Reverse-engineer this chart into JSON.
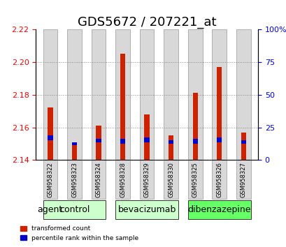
{
  "title": "GDS5672 / 207221_at",
  "samples": [
    "GSM958322",
    "GSM958323",
    "GSM958324",
    "GSM958328",
    "GSM958329",
    "GSM958330",
    "GSM958325",
    "GSM958326",
    "GSM958327"
  ],
  "red_values": [
    2.172,
    2.151,
    2.161,
    2.205,
    2.168,
    2.155,
    2.181,
    2.197,
    2.157
  ],
  "blue_values": [
    2.152,
    2.149,
    2.151,
    2.15,
    2.151,
    2.15,
    2.15,
    2.151,
    2.15
  ],
  "blue_heights": [
    0.003,
    0.002,
    0.002,
    0.003,
    0.003,
    0.002,
    0.003,
    0.003,
    0.002
  ],
  "ylim_left": [
    2.14,
    2.22
  ],
  "yticks_left": [
    2.14,
    2.16,
    2.18,
    2.2,
    2.22
  ],
  "yticks_right": [
    0,
    25,
    50,
    75,
    100
  ],
  "groups": [
    {
      "label": "control",
      "indices": [
        0,
        1,
        2
      ],
      "color": "#ccffcc"
    },
    {
      "label": "bevacizumab",
      "indices": [
        3,
        4,
        5
      ],
      "color": "#ccffcc"
    },
    {
      "label": "dibenzazepine",
      "indices": [
        6,
        7,
        8
      ],
      "color": "#66ff66"
    }
  ],
  "bar_width": 0.6,
  "red_color": "#cc2200",
  "blue_color": "#0000cc",
  "grid_color": "#888888",
  "bar_bg_color": "#d8d8d8",
  "title_fontsize": 13,
  "tick_fontsize": 8,
  "label_fontsize": 9,
  "agent_label": "agent",
  "legend_items": [
    {
      "label": "transformed count",
      "color": "#cc2200"
    },
    {
      "label": "percentile rank within the sample",
      "color": "#0000cc"
    }
  ]
}
